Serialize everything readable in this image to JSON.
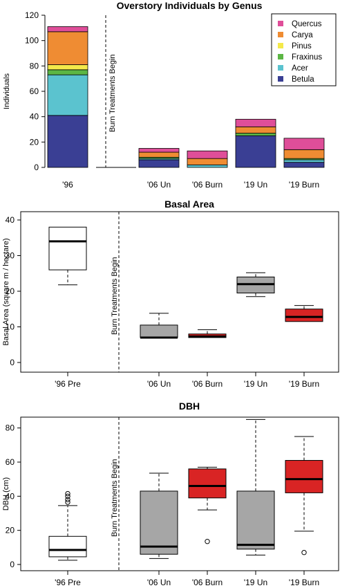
{
  "chart_data": [
    {
      "type": "bar",
      "stacked": true,
      "title": "Overstory Individuals by Genus",
      "ylabel": "Individuals",
      "ylim": [
        0,
        120
      ],
      "yticks": [
        0,
        20,
        40,
        60,
        80,
        100,
        120
      ],
      "categories": [
        "'96",
        "",
        "'06 Un",
        "'06 Burn",
        "'19 Un",
        "'19 Burn"
      ],
      "series": [
        {
          "name": "Betula",
          "color": "#3a3f94",
          "values": [
            41,
            0,
            6,
            0,
            25,
            4
          ]
        },
        {
          "name": "Acer",
          "color": "#5bc3cf",
          "values": [
            32,
            0,
            1,
            2,
            0,
            2
          ]
        },
        {
          "name": "Fraxinus",
          "color": "#5cb645",
          "values": [
            4,
            0,
            1,
            0,
            2,
            1
          ]
        },
        {
          "name": "Pinus",
          "color": "#f4e94a",
          "values": [
            4,
            0,
            0,
            0,
            0,
            0
          ]
        },
        {
          "name": "Carya",
          "color": "#ef8c33",
          "values": [
            26,
            0,
            4,
            5,
            5,
            7
          ]
        },
        {
          "name": "Quercus",
          "color": "#df4e99",
          "values": [
            4,
            0,
            3,
            6,
            6,
            9
          ]
        }
      ],
      "legend_position": "top-right",
      "annotation": "Burn Treatments Begin"
    },
    {
      "type": "boxplot",
      "title": "Basal Area",
      "ylabel": "Basal Area (square m / hectare)",
      "ylim": [
        0,
        40
      ],
      "yticks": [
        0,
        10,
        20,
        30,
        40
      ],
      "categories": [
        "'96 Pre",
        "",
        "'06 Un",
        "'06 Burn",
        "'19 Un",
        "'19 Burn"
      ],
      "boxes": [
        {
          "category": "'96 Pre",
          "min": 21.8,
          "q1": 26,
          "median": 34,
          "q3": 38,
          "max": 38,
          "outliers": [],
          "color": "#ffffff"
        },
        {
          "category": "'06 Un",
          "min": 7,
          "q1": 7,
          "median": 7,
          "q3": 10.5,
          "max": 13.8,
          "outliers": [],
          "color": "#a6a6a6"
        },
        {
          "category": "'06 Burn",
          "min": 7,
          "q1": 7,
          "median": 7.3,
          "q3": 8,
          "max": 9.2,
          "outliers": [],
          "color": "#d92424"
        },
        {
          "category": "'19 Un",
          "min": 18.5,
          "q1": 19.5,
          "median": 22,
          "q3": 24,
          "max": 25.2,
          "outliers": [],
          "color": "#a6a6a6"
        },
        {
          "category": "'19 Burn",
          "min": 11.5,
          "q1": 11.5,
          "median": 12.8,
          "q3": 15,
          "max": 16,
          "outliers": [],
          "color": "#d92424"
        }
      ],
      "annotation": "Burn Treatments Begin"
    },
    {
      "type": "boxplot",
      "title": "DBH",
      "ylabel": "DBH (cm)",
      "ylim": [
        0,
        90
      ],
      "yticks": [
        0,
        20,
        40,
        60,
        80
      ],
      "categories": [
        "'96 Pre",
        "",
        "'06 Un",
        "'06 Burn",
        "'19 Un",
        "'19 Burn"
      ],
      "boxes": [
        {
          "category": "'96 Pre",
          "min": 2.5,
          "q1": 4.5,
          "median": 8.5,
          "q3": 16.5,
          "max": 34.5,
          "outliers": [
            36.5,
            38,
            40,
            41.5
          ],
          "color": "#ffffff"
        },
        {
          "category": "'06 Un",
          "min": 3.5,
          "q1": 6,
          "median": 10.5,
          "q3": 43,
          "max": 53.5,
          "outliers": [],
          "color": "#a6a6a6"
        },
        {
          "category": "'06 Burn",
          "min": 32,
          "q1": 39,
          "median": 46,
          "q3": 56,
          "max": 57,
          "outliers": [
            13.5
          ],
          "color": "#d92424"
        },
        {
          "category": "'19 Un",
          "min": 5.5,
          "q1": 9,
          "median": 11.5,
          "q3": 43,
          "max": 85,
          "outliers": [],
          "color": "#a6a6a6"
        },
        {
          "category": "'19 Burn",
          "min": 19.5,
          "q1": 42,
          "median": 50,
          "q3": 61,
          "max": 75,
          "outliers": [
            7
          ],
          "color": "#d92424"
        }
      ],
      "annotation": "Burn Treatments Begin"
    }
  ]
}
